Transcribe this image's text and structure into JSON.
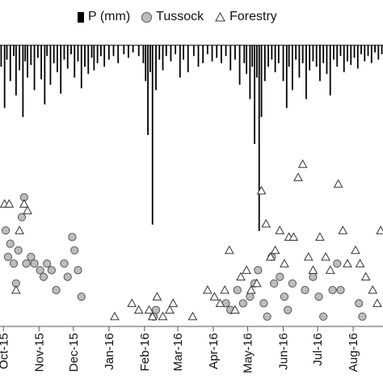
{
  "chart_data": {
    "type": "scatter",
    "title": "",
    "xlabel": "",
    "ylabel": "",
    "x_tick_labels": [
      "Oct-15",
      "Nov-15",
      "Dec-15",
      "Jan-16",
      "Feb-16",
      "Mar-16",
      "Apr-16",
      "May-16",
      "Jun-16",
      "Jul-16",
      "Aug-16"
    ],
    "x_tick_dates": [
      "2015-10-01",
      "2015-11-01",
      "2015-12-01",
      "2016-01-01",
      "2016-02-01",
      "2016-03-01",
      "2016-04-01",
      "2016-05-01",
      "2016-06-01",
      "2016-07-01",
      "2016-08-01"
    ],
    "x_range": [
      "2015-09-28",
      "2016-08-27"
    ],
    "legend": {
      "placement": "top",
      "entries": [
        {
          "label": "P (mm)",
          "marker": "bar",
          "color": "#000000"
        },
        {
          "label": "Tussock",
          "marker": "circle",
          "color": "#bdbdbd"
        },
        {
          "label": "Forestry",
          "marker": "triangle",
          "color": "#ffffff"
        }
      ]
    },
    "grid": false,
    "series": [
      {
        "name": "P (mm)",
        "type": "bar",
        "axis": "top-inverted",
        "max_depth": 100,
        "points": [
          [
            "2015-09-29",
            12
          ],
          [
            "2015-10-02",
            35
          ],
          [
            "2015-10-04",
            8
          ],
          [
            "2015-10-07",
            20
          ],
          [
            "2015-10-10",
            6
          ],
          [
            "2015-10-12",
            28
          ],
          [
            "2015-10-15",
            14
          ],
          [
            "2015-10-18",
            40
          ],
          [
            "2015-10-20",
            9
          ],
          [
            "2015-10-22",
            18
          ],
          [
            "2015-10-25",
            11
          ],
          [
            "2015-10-28",
            25
          ],
          [
            "2015-10-31",
            7
          ],
          [
            "2015-11-03",
            19
          ],
          [
            "2015-11-06",
            33
          ],
          [
            "2015-11-08",
            6
          ],
          [
            "2015-11-11",
            22
          ],
          [
            "2015-11-14",
            10
          ],
          [
            "2015-11-17",
            15
          ],
          [
            "2015-11-20",
            27
          ],
          [
            "2015-11-23",
            8
          ],
          [
            "2015-11-26",
            13
          ],
          [
            "2015-11-29",
            5
          ],
          [
            "2015-12-02",
            18
          ],
          [
            "2015-12-05",
            9
          ],
          [
            "2015-12-08",
            24
          ],
          [
            "2015-12-11",
            12
          ],
          [
            "2015-12-14",
            16
          ],
          [
            "2015-12-17",
            7
          ],
          [
            "2015-12-19",
            14
          ],
          [
            "2015-12-22",
            10
          ],
          [
            "2015-12-25",
            6
          ],
          [
            "2015-12-28",
            12
          ],
          [
            "2016-01-01",
            8
          ],
          [
            "2016-01-05",
            6
          ],
          [
            "2016-01-09",
            10
          ],
          [
            "2016-01-14",
            5
          ],
          [
            "2016-01-18",
            7
          ],
          [
            "2016-01-22",
            4
          ],
          [
            "2016-01-27",
            6
          ],
          [
            "2016-01-31",
            10
          ],
          [
            "2016-02-02",
            20
          ],
          [
            "2016-02-04",
            50
          ],
          [
            "2016-02-06",
            15
          ],
          [
            "2016-02-08",
            100
          ],
          [
            "2016-02-11",
            25
          ],
          [
            "2016-02-14",
            8
          ],
          [
            "2016-02-17",
            14
          ],
          [
            "2016-02-20",
            6
          ],
          [
            "2016-02-24",
            9
          ],
          [
            "2016-02-28",
            5
          ],
          [
            "2016-03-03",
            18
          ],
          [
            "2016-03-06",
            8
          ],
          [
            "2016-03-10",
            15
          ],
          [
            "2016-03-15",
            6
          ],
          [
            "2016-03-19",
            12
          ],
          [
            "2016-03-23",
            10
          ],
          [
            "2016-03-27",
            5
          ],
          [
            "2016-03-31",
            9
          ],
          [
            "2016-04-04",
            7
          ],
          [
            "2016-04-08",
            10
          ],
          [
            "2016-04-12",
            6
          ],
          [
            "2016-04-16",
            14
          ],
          [
            "2016-04-20",
            8
          ],
          [
            "2016-04-24",
            22
          ],
          [
            "2016-04-28",
            10
          ],
          [
            "2016-04-30",
            16
          ],
          [
            "2016-05-03",
            30
          ],
          [
            "2016-05-05",
            12
          ],
          [
            "2016-05-07",
            55
          ],
          [
            "2016-05-09",
            18
          ],
          [
            "2016-05-11",
            110
          ],
          [
            "2016-05-13",
            40
          ],
          [
            "2016-05-16",
            20
          ],
          [
            "2016-05-19",
            12
          ],
          [
            "2016-05-22",
            8
          ],
          [
            "2016-05-25",
            15
          ],
          [
            "2016-05-28",
            10
          ],
          [
            "2016-06-01",
            20
          ],
          [
            "2016-06-04",
            35
          ],
          [
            "2016-06-06",
            12
          ],
          [
            "2016-06-09",
            25
          ],
          [
            "2016-06-12",
            8
          ],
          [
            "2016-06-15",
            18
          ],
          [
            "2016-06-18",
            10
          ],
          [
            "2016-06-21",
            30
          ],
          [
            "2016-06-24",
            14
          ],
          [
            "2016-06-27",
            9
          ],
          [
            "2016-06-30",
            12
          ],
          [
            "2016-07-03",
            20
          ],
          [
            "2016-07-06",
            10
          ],
          [
            "2016-07-09",
            16
          ],
          [
            "2016-07-12",
            28
          ],
          [
            "2016-07-15",
            8
          ],
          [
            "2016-07-18",
            12
          ],
          [
            "2016-07-21",
            6
          ],
          [
            "2016-07-24",
            15
          ],
          [
            "2016-07-27",
            9
          ],
          [
            "2016-07-30",
            11
          ],
          [
            "2016-08-02",
            7
          ],
          [
            "2016-08-05",
            13
          ],
          [
            "2016-08-08",
            5
          ],
          [
            "2016-08-11",
            9
          ],
          [
            "2016-08-14",
            6
          ],
          [
            "2016-08-17",
            10
          ],
          [
            "2016-08-20",
            4
          ],
          [
            "2016-08-23",
            8
          ],
          [
            "2016-08-26",
            5
          ]
        ]
      },
      {
        "name": "Tussock",
        "type": "scatter",
        "marker": "circle",
        "max_value": 100,
        "points": [
          [
            "2015-10-03",
            28
          ],
          [
            "2015-10-05",
            20
          ],
          [
            "2015-10-07",
            24
          ],
          [
            "2015-10-10",
            18
          ],
          [
            "2015-10-12",
            12
          ],
          [
            "2015-10-14",
            22
          ],
          [
            "2015-10-17",
            32
          ],
          [
            "2015-10-19",
            38
          ],
          [
            "2015-10-21",
            18
          ],
          [
            "2015-10-25",
            20
          ],
          [
            "2015-10-28",
            18
          ],
          [
            "2015-11-02",
            16
          ],
          [
            "2015-11-05",
            14
          ],
          [
            "2015-11-08",
            18
          ],
          [
            "2015-11-12",
            16
          ],
          [
            "2015-11-16",
            10
          ],
          [
            "2015-11-23",
            18
          ],
          [
            "2015-11-26",
            14
          ],
          [
            "2015-11-30",
            26
          ],
          [
            "2015-12-02",
            22
          ],
          [
            "2015-12-05",
            16
          ],
          [
            "2015-12-08",
            8
          ],
          [
            "2016-02-09",
            2
          ],
          [
            "2016-02-11",
            4
          ],
          [
            "2016-04-12",
            6
          ],
          [
            "2016-04-16",
            4
          ],
          [
            "2016-04-22",
            10
          ],
          [
            "2016-04-27",
            6
          ],
          [
            "2016-05-03",
            8
          ],
          [
            "2016-05-07",
            12
          ],
          [
            "2016-05-10",
            16
          ],
          [
            "2016-05-15",
            6
          ],
          [
            "2016-05-18",
            2
          ],
          [
            "2016-05-22",
            20
          ],
          [
            "2016-05-24",
            12
          ],
          [
            "2016-05-29",
            14
          ],
          [
            "2016-06-02",
            8
          ],
          [
            "2016-06-05",
            4
          ],
          [
            "2016-06-09",
            12
          ],
          [
            "2016-06-20",
            10
          ],
          [
            "2016-06-27",
            14
          ],
          [
            "2016-07-02",
            8
          ],
          [
            "2016-07-06",
            2
          ],
          [
            "2016-07-14",
            10
          ],
          [
            "2016-07-18",
            18
          ],
          [
            "2016-07-21",
            10
          ],
          [
            "2016-08-06",
            6
          ],
          [
            "2016-08-09",
            2
          ]
        ]
      },
      {
        "name": "Forestry",
        "type": "scatter",
        "marker": "triangle",
        "max_value": 100,
        "points": [
          [
            "2015-10-02",
            36
          ],
          [
            "2015-10-06",
            36
          ],
          [
            "2015-10-12",
            10
          ],
          [
            "2015-10-15",
            28
          ],
          [
            "2015-10-19",
            36
          ],
          [
            "2015-10-22",
            34
          ],
          [
            "2016-01-06",
            2
          ],
          [
            "2016-01-21",
            6
          ],
          [
            "2016-01-27",
            4
          ],
          [
            "2016-02-05",
            4
          ],
          [
            "2016-02-08",
            2
          ],
          [
            "2016-02-12",
            8
          ],
          [
            "2016-02-17",
            2
          ],
          [
            "2016-02-23",
            4
          ],
          [
            "2016-02-26",
            6
          ],
          [
            "2016-03-14",
            2
          ],
          [
            "2016-03-27",
            10
          ],
          [
            "2016-04-02",
            8
          ],
          [
            "2016-04-07",
            6
          ],
          [
            "2016-04-11",
            10
          ],
          [
            "2016-04-15",
            22
          ],
          [
            "2016-04-20",
            4
          ],
          [
            "2016-04-25",
            14
          ],
          [
            "2016-04-30",
            16
          ],
          [
            "2016-05-04",
            10
          ],
          [
            "2016-05-09",
            12
          ],
          [
            "2016-05-13",
            40
          ],
          [
            "2016-05-17",
            30
          ],
          [
            "2016-05-21",
            20
          ],
          [
            "2016-05-25",
            22
          ],
          [
            "2016-05-29",
            28
          ],
          [
            "2016-06-02",
            18
          ],
          [
            "2016-06-06",
            26
          ],
          [
            "2016-06-10",
            26
          ],
          [
            "2016-06-14",
            44
          ],
          [
            "2016-06-18",
            48
          ],
          [
            "2016-06-23",
            20
          ],
          [
            "2016-06-27",
            16
          ],
          [
            "2016-07-03",
            26
          ],
          [
            "2016-07-08",
            20
          ],
          [
            "2016-07-12",
            16
          ],
          [
            "2016-07-19",
            42
          ],
          [
            "2016-07-23",
            28
          ],
          [
            "2016-07-27",
            18
          ],
          [
            "2016-08-03",
            22
          ],
          [
            "2016-08-07",
            18
          ],
          [
            "2016-08-12",
            14
          ],
          [
            "2016-08-18",
            10
          ],
          [
            "2016-08-22",
            6
          ],
          [
            "2016-08-25",
            28
          ]
        ]
      }
    ]
  }
}
